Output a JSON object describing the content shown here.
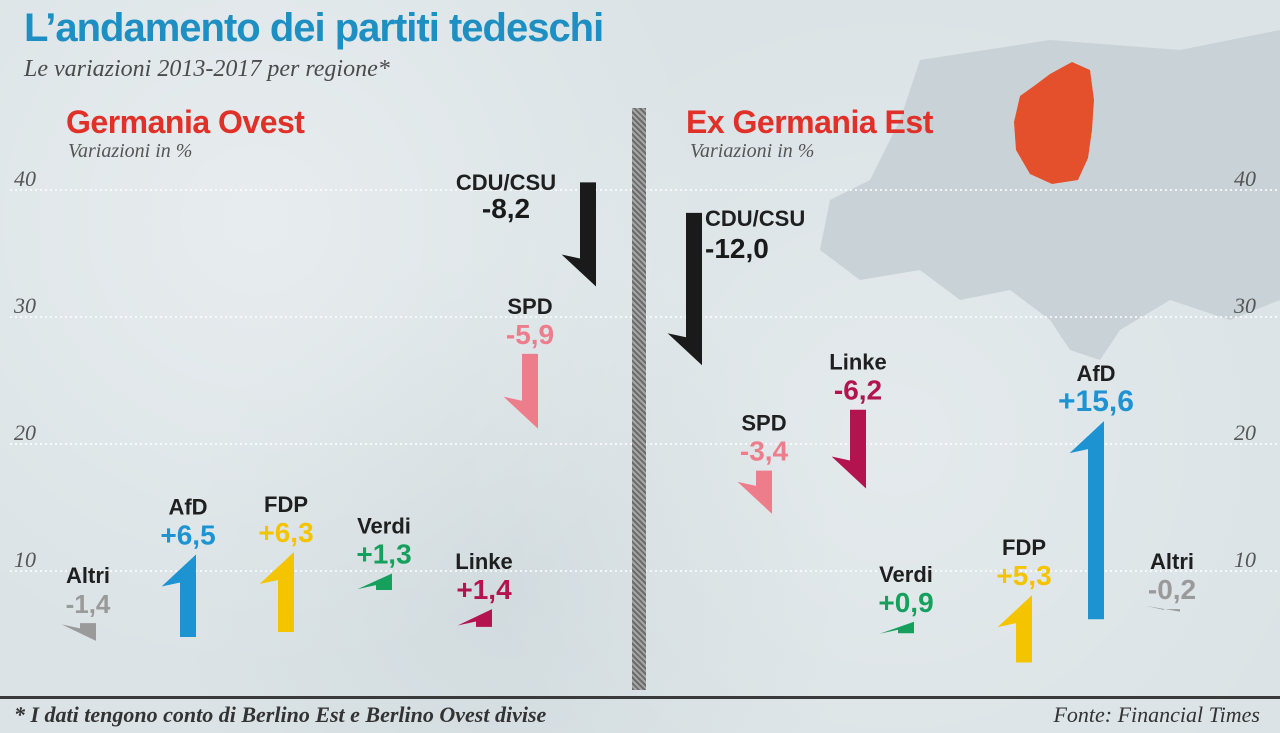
{
  "title": "L’andamento dei partiti tedeschi",
  "subtitle": "Le variazioni 2013-2017 per regione*",
  "footnote": "* I dati tengono conto di Berlino Est e Berlino Ovest divise",
  "source": "Fonte: Financial Times",
  "colors": {
    "title": "#1d8fc2",
    "region_title": "#e03028",
    "CDU/CSU": "#1a1a1a",
    "SPD": "#ee7d8c",
    "AfD": "#1d93d2",
    "FDP": "#f5c400",
    "Verdi": "#16a05e",
    "Linke": "#b3134f",
    "Altri": "#9a9a9a"
  },
  "icons": {
    "map": "europe-map-germany-highlight"
  },
  "chart_data": [
    {
      "type": "bar",
      "panel": "Germania Ovest",
      "title": "Germania Ovest",
      "ylabel": "Variazioni in %",
      "yticks": [
        10,
        20,
        30,
        40
      ],
      "ylim": [
        0,
        40
      ],
      "series": [
        {
          "name": "Altri",
          "label": "-1,4",
          "from": 5.9,
          "to": 4.5
        },
        {
          "name": "AfD",
          "label": "+6,5",
          "from": 4.8,
          "to": 11.3
        },
        {
          "name": "FDP",
          "label": "+6,3",
          "from": 5.2,
          "to": 11.5
        },
        {
          "name": "Verdi",
          "label": "+1,3",
          "from": 8.5,
          "to": 9.8
        },
        {
          "name": "Linke",
          "label": "+1,4",
          "from": 5.6,
          "to": 7.0
        },
        {
          "name": "SPD",
          "label": "-5,9",
          "from": 27.1,
          "to": 21.2
        },
        {
          "name": "CDU/CSU",
          "label": "-8,2",
          "from": 40.6,
          "to": 32.4
        }
      ]
    },
    {
      "type": "bar",
      "panel": "Ex Germania Est",
      "title": "Ex Germania Est",
      "ylabel": "Variazioni in %",
      "yticks": [
        10,
        20,
        30,
        40
      ],
      "ylim": [
        0,
        40
      ],
      "series": [
        {
          "name": "CDU/CSU",
          "label": "-12,0",
          "from": 38.2,
          "to": 26.2
        },
        {
          "name": "SPD",
          "label": "-3,4",
          "from": 17.9,
          "to": 14.5
        },
        {
          "name": "Linke",
          "label": "-6,2",
          "from": 22.7,
          "to": 16.5
        },
        {
          "name": "Verdi",
          "label": "+0,9",
          "from": 5.1,
          "to": 6.0
        },
        {
          "name": "FDP",
          "label": "+5,3",
          "from": 2.8,
          "to": 8.1
        },
        {
          "name": "AfD",
          "label": "+15,6",
          "from": 6.2,
          "to": 21.8
        },
        {
          "name": "Altri",
          "label": "-0,2",
          "from": 7.0,
          "to": 6.8
        }
      ]
    }
  ]
}
